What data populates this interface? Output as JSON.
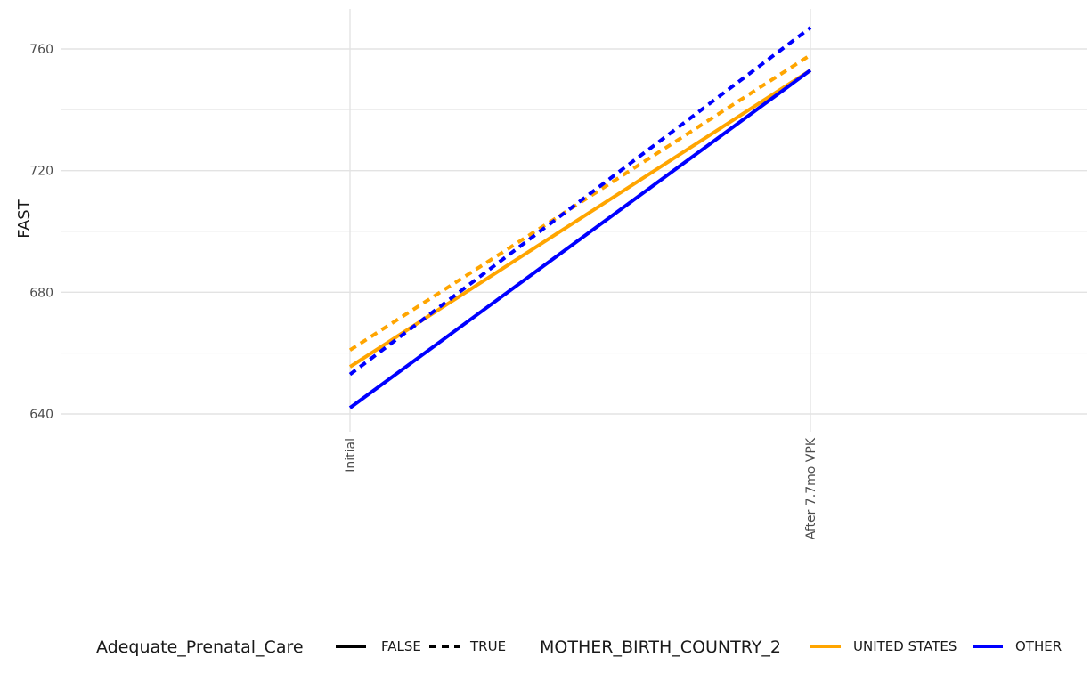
{
  "chart_data": {
    "type": "line",
    "title": "",
    "xlabel": "",
    "ylabel": "FAST",
    "categories": [
      "Initial",
      "After 7.7mo VPK"
    ],
    "ylim": [
      627,
      772
    ],
    "yticks": [
      640,
      680,
      720,
      760
    ],
    "grid": true,
    "legend_position": "bottom",
    "series": [
      {
        "values": [
          655.5,
          753
        ],
        "linetype_level": "FALSE",
        "color_level": "UNITED STATES"
      },
      {
        "values": [
          661,
          758
        ],
        "linetype_level": "TRUE",
        "color_level": "UNITED STATES"
      },
      {
        "values": [
          642,
          753
        ],
        "linetype_level": "FALSE",
        "color_level": "OTHER"
      },
      {
        "values": [
          653,
          767
        ],
        "linetype_level": "TRUE",
        "color_level": "OTHER"
      }
    ],
    "legends": [
      {
        "title": "Adequate_Prenatal_Care",
        "kind": "linetype",
        "entries": [
          {
            "label": "FALSE",
            "linetype": "solid"
          },
          {
            "label": "TRUE",
            "linetype": "dashed"
          }
        ]
      },
      {
        "title": "MOTHER_BIRTH_COUNTRY_2",
        "kind": "color",
        "entries": [
          {
            "label": "UNITED STATES",
            "color": "#FFA500"
          },
          {
            "label": "OTHER",
            "color": "#0000FF"
          }
        ]
      }
    ]
  }
}
